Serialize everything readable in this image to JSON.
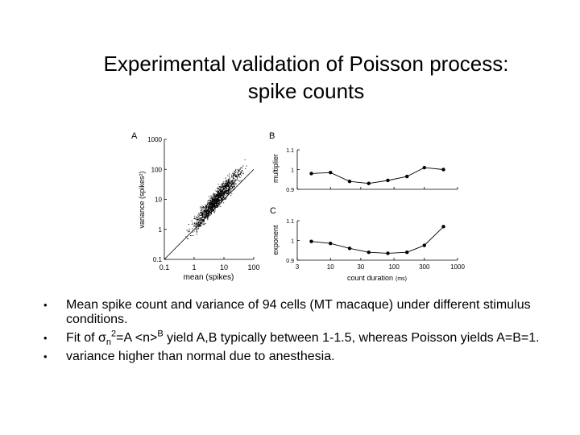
{
  "title": {
    "line1": "Experimental validation of Poisson process:",
    "line2": "spike counts"
  },
  "chart_data": [
    {
      "panel": "A",
      "type": "scatter",
      "xlabel": "mean (spikes)",
      "ylabel": "variance (spikes²)",
      "x_ticks": [
        "0.1",
        "1",
        "10",
        "100"
      ],
      "y_ticks": [
        "0.1",
        "1",
        "10",
        "100",
        "1000"
      ],
      "xlim": [
        0.1,
        100
      ],
      "ylim": [
        0.1,
        1000
      ],
      "log_x": true,
      "log_y": true,
      "reference_line": "variance = mean"
    },
    {
      "panel": "B",
      "type": "line",
      "ylabel": "multiplier",
      "y_ticks": [
        "0.9",
        "1",
        "1.1"
      ],
      "ylim": [
        0.9,
        1.1
      ],
      "x": [
        5,
        10,
        20,
        40,
        80,
        160,
        300,
        600
      ],
      "values": [
        0.98,
        0.985,
        0.94,
        0.93,
        0.945,
        0.965,
        1.01,
        1.0
      ]
    },
    {
      "panel": "C",
      "type": "line",
      "ylabel": "exponent",
      "xlabel": "count duration",
      "xlabel_unit": "(ms)",
      "x_ticks": [
        "3",
        "10",
        "30",
        "100",
        "300",
        "1000"
      ],
      "y_ticks": [
        "0.9",
        "1",
        "1.1"
      ],
      "xlim": [
        3,
        1000
      ],
      "ylim": [
        0.9,
        1.1
      ],
      "x": [
        5,
        10,
        20,
        40,
        80,
        160,
        300,
        600
      ],
      "values": [
        0.995,
        0.985,
        0.96,
        0.94,
        0.935,
        0.94,
        0.975,
        1.07
      ]
    }
  ],
  "bullets": [
    {
      "text": "Mean spike count and variance of 94 cells (MT macaque) under different stimulus conditions."
    },
    {
      "pre": "Fit of ",
      "sigma": "σ",
      "sub": "n",
      "sup": "2",
      "mid": "=A <n>",
      "sup2": "B",
      "post": " yield A,B typically between 1-1.5, whereas Poisson yields A=B=1."
    },
    {
      "text": "variance higher than normal due to anesthesia."
    }
  ]
}
